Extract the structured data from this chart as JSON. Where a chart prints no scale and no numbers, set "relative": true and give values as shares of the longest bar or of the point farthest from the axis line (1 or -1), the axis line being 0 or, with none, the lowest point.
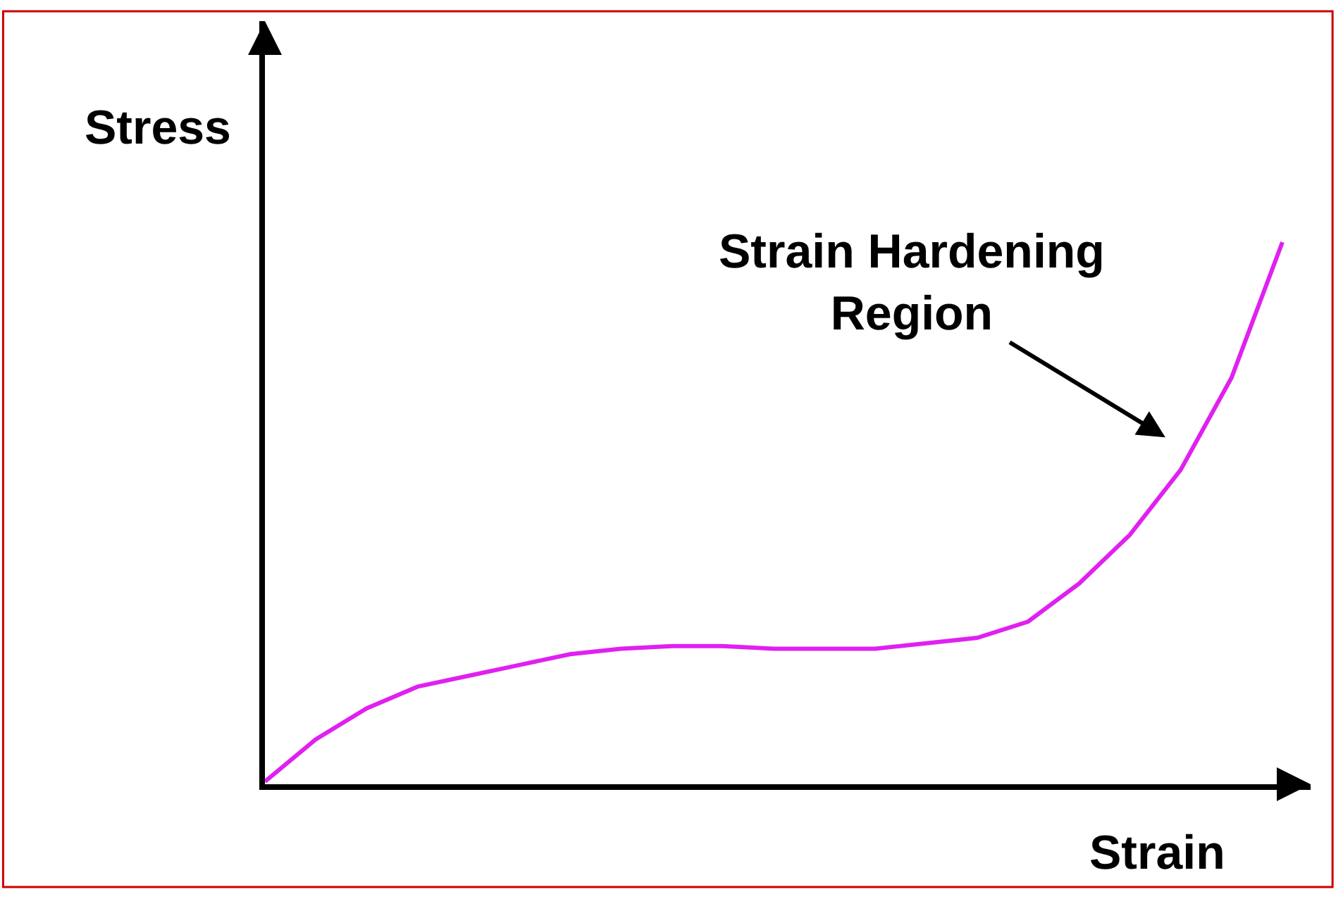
{
  "chart_data": {
    "type": "line",
    "relative": true,
    "xlabel": "Strain",
    "ylabel": "Stress",
    "annotations": [
      "Strain Hardening\nRegion"
    ],
    "categories": [
      null,
      null,
      null,
      null,
      null,
      null,
      null,
      null,
      null,
      null,
      null,
      null,
      null,
      null,
      null,
      null,
      null,
      null,
      null,
      null,
      null
    ],
    "series": [
      {
        "color": "#e020f0",
        "values": [
          0.005,
          0.083,
          0.14,
          0.18,
          0.2,
          0.22,
          0.24,
          0.25,
          0.255,
          0.255,
          0.25,
          0.25,
          0.25,
          0.26,
          0.27,
          0.3,
          0.37,
          0.46,
          0.58,
          0.75,
          1.0
        ]
      }
    ],
    "marker": "none",
    "line_style": "solid"
  }
}
